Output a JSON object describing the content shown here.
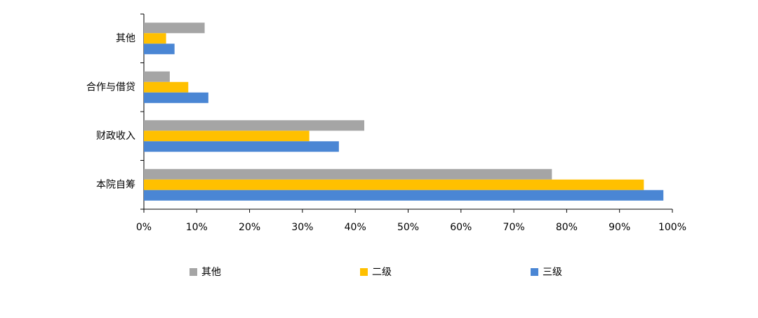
{
  "chart_data": {
    "type": "hbar",
    "categories": [
      "其他",
      "合作与借贷",
      "财政收入",
      "本院自筹"
    ],
    "series": [
      {
        "name": "其他",
        "color": "#a5a5a5",
        "values": [
          11.5,
          4.9,
          41.7,
          77.2
        ]
      },
      {
        "name": "二级",
        "color": "#ffc000",
        "values": [
          4.2,
          8.4,
          31.3,
          94.6
        ]
      },
      {
        "name": "三级",
        "color": "#4a86d4",
        "values": [
          5.8,
          12.2,
          36.9,
          98.3
        ]
      }
    ],
    "xlim": [
      0,
      100
    ],
    "xticks": [
      {
        "value": 0,
        "label": "0%"
      },
      {
        "value": 10,
        "label": "10%"
      },
      {
        "value": 20,
        "label": "20%"
      },
      {
        "value": 30,
        "label": "30%"
      },
      {
        "value": 40,
        "label": "40%"
      },
      {
        "value": 50,
        "label": "50%"
      },
      {
        "value": 60,
        "label": "60%"
      },
      {
        "value": 70,
        "label": "70%"
      },
      {
        "value": 80,
        "label": "80%"
      },
      {
        "value": 90,
        "label": "90%"
      },
      {
        "value": 100,
        "label": "100%"
      }
    ],
    "legend": "bottom"
  }
}
